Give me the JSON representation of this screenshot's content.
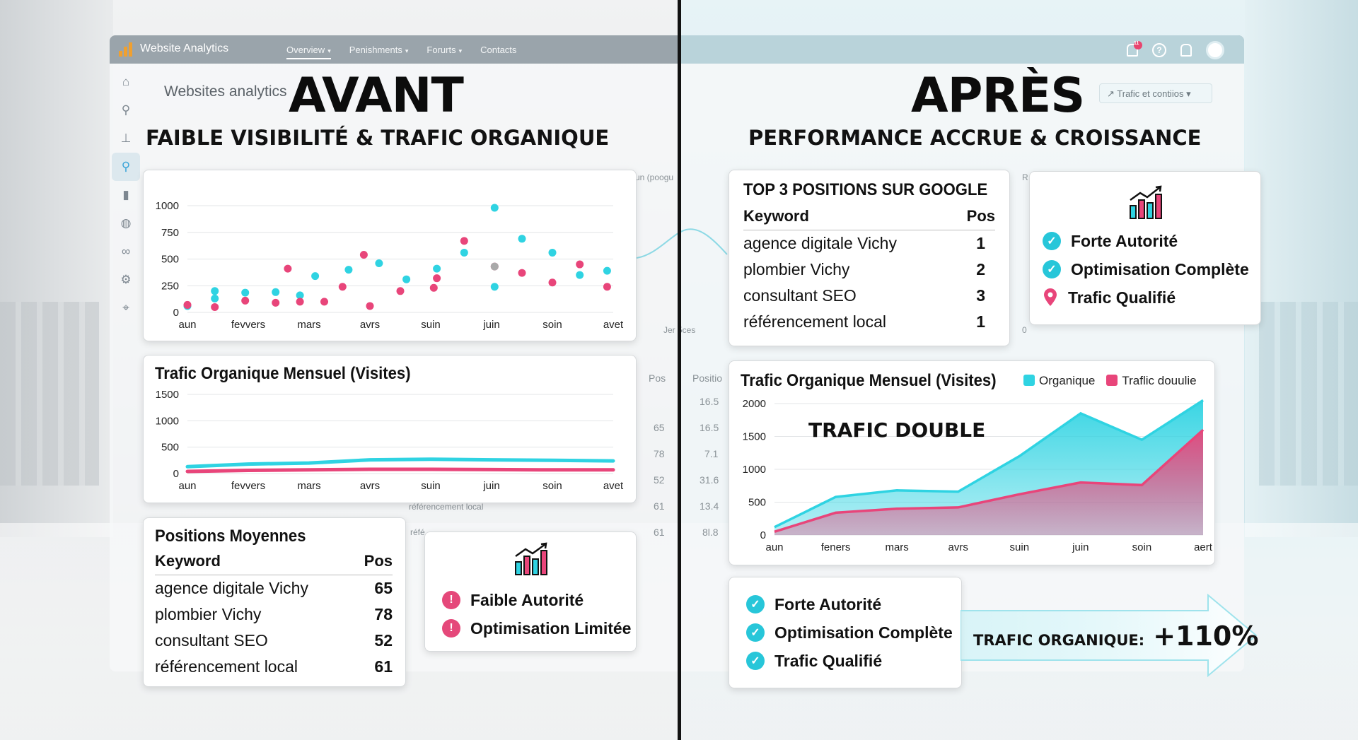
{
  "app": {
    "title": "Website Analytics",
    "nav": [
      {
        "label": "Overview",
        "caret": "▾"
      },
      {
        "label": "Penishments",
        "caret": "▾"
      },
      {
        "label": "Forurts",
        "caret": "▾"
      },
      {
        "label": "Contacts",
        "caret": ""
      }
    ],
    "notification_count": "11",
    "page_title": "Websites analytics",
    "filter_label": "Trafic et contiios",
    "sidebar_icons": [
      "home-icon",
      "search-icon",
      "hierarchy-icon",
      "search-active-icon",
      "bar-chart-icon",
      "globe-icon",
      "link-icon",
      "gear-icon",
      "location-pin-icon"
    ]
  },
  "background_labels": {
    "ghost_1": "un (poogu",
    "ghost_2": "R",
    "ghost_3": "Jer 5ces",
    "ghost_4": "0",
    "pos_header": "Pos",
    "position_header": "Positio",
    "ghost_pos_values": [
      "65",
      "78",
      "52",
      "61",
      "61"
    ],
    "ghost_position_values": [
      "16.5",
      "16.5",
      "7.1",
      "31.6",
      "13.4",
      "8l.8"
    ],
    "ghost_row_1": "référencement local",
    "ghost_row_2": "réfé"
  },
  "before": {
    "heading": "AVANT",
    "subheading": "FAIBLE VISIBILITÉ & TRAFIC ORGANIQUE",
    "positions_title": "Positions Moyennes",
    "table_headers": {
      "keyword": "Keyword",
      "pos": "Pos"
    },
    "keywords": [
      {
        "keyword": "agence digitale Vichy",
        "pos": "65"
      },
      {
        "keyword": "plombier Vichy",
        "pos": "78"
      },
      {
        "keyword": "consultant SEO",
        "pos": "52"
      },
      {
        "keyword": "référencement local",
        "pos": "61"
      }
    ],
    "status": [
      {
        "label": "Faible Autorité",
        "icon": "warning-icon"
      },
      {
        "label": "Optimisation Limitée",
        "icon": "warning-icon"
      }
    ]
  },
  "after": {
    "heading": "APRÈS",
    "subheading": "PERFORMANCE ACCRUE & CROISSANCE",
    "top3_title": "TOP 3 POSITIONS SUR GOOGLE",
    "table_headers": {
      "keyword": "Keyword",
      "pos": "Pos"
    },
    "keywords": [
      {
        "keyword": "agence digitale Vichy",
        "pos": "1"
      },
      {
        "keyword": "plombier Vichy",
        "pos": "2"
      },
      {
        "keyword": "consultant SEO",
        "pos": "3"
      },
      {
        "keyword": "référencement local",
        "pos": "1"
      }
    ],
    "status_top": [
      {
        "label": "Forte Autorité",
        "icon": "check-icon"
      },
      {
        "label": "Optimisation Complète",
        "icon": "check-icon"
      },
      {
        "label": "Trafic Qualifié",
        "icon": "location-pin-icon"
      }
    ],
    "status_bottom": [
      {
        "label": "Forte Autorité",
        "icon": "check-icon"
      },
      {
        "label": "Optimisation Complète",
        "icon": "check-icon"
      },
      {
        "label": "Trafic Qualifié",
        "icon": "check-icon"
      }
    ],
    "growth_label": "TRAFIC ORGANIQUE:",
    "growth_value": "+110%"
  },
  "colors": {
    "cyan": "#2fd3e2",
    "pink": "#e8457a",
    "dark": "#111111"
  },
  "chart_data": [
    {
      "type": "scatter",
      "categories": [
        "aun",
        "fevvers",
        "mars",
        "avrs",
        "suin",
        "juin",
        "soin",
        "avet"
      ],
      "ylim": [
        0,
        1000
      ],
      "yticks": [
        0,
        250,
        500,
        750,
        1000
      ],
      "series": [
        {
          "color": "#2fd3e2",
          "points": [
            [
              0,
              60
            ],
            [
              0.45,
              130
            ],
            [
              0.45,
              200
            ],
            [
              0.95,
              185
            ],
            [
              1.45,
              190
            ],
            [
              1.85,
              160
            ],
            [
              2.1,
              340
            ],
            [
              2.65,
              400
            ],
            [
              3.15,
              460
            ],
            [
              3.6,
              310
            ],
            [
              4.1,
              410
            ],
            [
              4.55,
              560
            ],
            [
              5.05,
              980
            ],
            [
              5.05,
              240
            ],
            [
              5.5,
              690
            ],
            [
              6.0,
              560
            ],
            [
              6.45,
              350
            ],
            [
              6.9,
              390
            ]
          ]
        },
        {
          "color": "#e8457a",
          "points": [
            [
              0,
              70
            ],
            [
              0.45,
              50
            ],
            [
              0.95,
              110
            ],
            [
              1.45,
              90
            ],
            [
              1.65,
              410
            ],
            [
              1.85,
              100
            ],
            [
              2.25,
              100
            ],
            [
              2.55,
              240
            ],
            [
              2.9,
              540
            ],
            [
              3.0,
              60
            ],
            [
              3.5,
              200
            ],
            [
              4.05,
              230
            ],
            [
              4.1,
              320
            ],
            [
              4.55,
              670
            ],
            [
              5.05,
              430
            ],
            [
              5.5,
              370
            ],
            [
              6.0,
              280
            ],
            [
              6.45,
              450
            ],
            [
              6.9,
              240
            ]
          ]
        },
        {
          "color": "#a9a9a9",
          "points": [
            [
              5.05,
              430
            ]
          ]
        }
      ]
    },
    {
      "type": "line",
      "title": "Trafic Organique Mensuel (Visites)",
      "categories": [
        "aun",
        "fevvers",
        "mars",
        "avrs",
        "suin",
        "juin",
        "soin",
        "avet"
      ],
      "ylim": [
        0,
        1500
      ],
      "yticks": [
        0,
        500,
        1000,
        1500
      ],
      "series": [
        {
          "color": "#2fd3e2",
          "values": [
            130,
            180,
            200,
            260,
            270,
            260,
            250,
            240
          ]
        },
        {
          "color": "#e8457a",
          "values": [
            40,
            60,
            70,
            80,
            80,
            75,
            70,
            70
          ]
        }
      ]
    },
    {
      "type": "area",
      "title": "Trafic Organique Mensuel (Visites)",
      "annotation": "TRAFIC DOUBLE",
      "categories": [
        "aun",
        "feners",
        "mars",
        "avrs",
        "suin",
        "juin",
        "soin",
        "aert"
      ],
      "ylim": [
        0,
        2000
      ],
      "yticks": [
        0,
        500,
        1000,
        1500,
        2000
      ],
      "series": [
        {
          "name": "Organique",
          "color": "#2fd3e2",
          "values": [
            120,
            580,
            680,
            660,
            1200,
            1850,
            1450,
            2050
          ]
        },
        {
          "name": "Traflic douulie",
          "color": "#e8457a",
          "values": [
            50,
            340,
            400,
            420,
            620,
            800,
            760,
            1600
          ]
        }
      ]
    }
  ]
}
